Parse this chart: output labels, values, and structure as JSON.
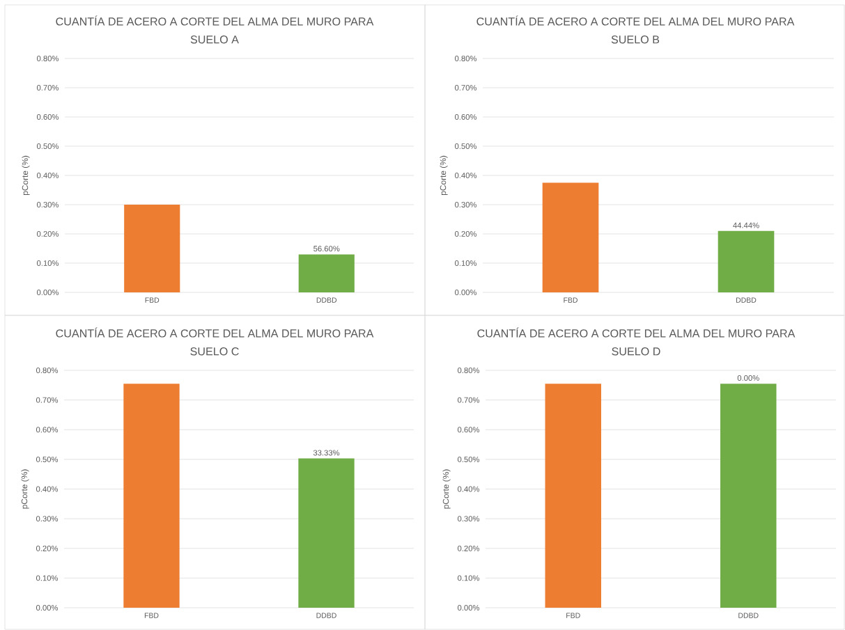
{
  "chart_data": [
    {
      "type": "bar",
      "title": "CUANTÍA DE ACERO A CORTE DEL ALMA DEL MURO PARA SUELO A",
      "ylabel": "pCorte (%)",
      "categories": [
        "FBD",
        "DDBD"
      ],
      "values": [
        0.3,
        0.13
      ],
      "colors": [
        "#ed7d31",
        "#70ad47"
      ],
      "annotations": [
        {
          "text": "56.60%",
          "x": "DDBD",
          "y": 0.13
        }
      ],
      "ylim": [
        0,
        0.8
      ],
      "yticks": [
        {
          "value": 0,
          "label": "0.00%"
        },
        {
          "value": 0.1,
          "label": "0.10%"
        },
        {
          "value": 0.2,
          "label": "0.20%"
        },
        {
          "value": 0.3,
          "label": "0.30%"
        },
        {
          "value": 0.4,
          "label": "0.40%"
        },
        {
          "value": 0.5,
          "label": "0.50%"
        },
        {
          "value": 0.6,
          "label": "0.60%"
        },
        {
          "value": 0.7,
          "label": "0.70%"
        },
        {
          "value": 0.8,
          "label": "0.80%"
        }
      ],
      "grid": "y"
    },
    {
      "type": "bar",
      "title": "CUANTÍA DE ACERO A CORTE DEL ALMA DEL MURO PARA SUELO B",
      "ylabel": "pCorte (%)",
      "categories": [
        "FBD",
        "DDBD"
      ],
      "values": [
        0.375,
        0.21
      ],
      "colors": [
        "#ed7d31",
        "#70ad47"
      ],
      "annotations": [
        {
          "text": "44.44%",
          "x": "DDBD",
          "y": 0.21
        }
      ],
      "ylim": [
        0,
        0.8
      ],
      "yticks": [
        {
          "value": 0,
          "label": "0.00%"
        },
        {
          "value": 0.1,
          "label": "0.10%"
        },
        {
          "value": 0.2,
          "label": "0.20%"
        },
        {
          "value": 0.3,
          "label": "0.30%"
        },
        {
          "value": 0.4,
          "label": "0.40%"
        },
        {
          "value": 0.5,
          "label": "0.50%"
        },
        {
          "value": 0.6,
          "label": "0.60%"
        },
        {
          "value": 0.7,
          "label": "0.70%"
        },
        {
          "value": 0.8,
          "label": "0.80%"
        }
      ],
      "grid": "y"
    },
    {
      "type": "bar",
      "title": "CUANTÍA DE ACERO A CORTE DEL ALMA DEL MURO PARA SUELO C",
      "ylabel": "pCorte (%)",
      "categories": [
        "FBD",
        "DDBD"
      ],
      "values": [
        0.755,
        0.503
      ],
      "colors": [
        "#ed7d31",
        "#70ad47"
      ],
      "annotations": [
        {
          "text": "33.33%",
          "x": "DDBD",
          "y": 0.503
        }
      ],
      "ylim": [
        0,
        0.8
      ],
      "yticks": [
        {
          "value": 0,
          "label": "0.00%"
        },
        {
          "value": 0.1,
          "label": "0.10%"
        },
        {
          "value": 0.2,
          "label": "0.20%"
        },
        {
          "value": 0.3,
          "label": "0.30%"
        },
        {
          "value": 0.4,
          "label": "0.40%"
        },
        {
          "value": 0.5,
          "label": "0.50%"
        },
        {
          "value": 0.6,
          "label": "0.60%"
        },
        {
          "value": 0.7,
          "label": "0.70%"
        },
        {
          "value": 0.8,
          "label": "0.80%"
        }
      ],
      "grid": "y"
    },
    {
      "type": "bar",
      "title": "CUANTÍA DE ACERO A CORTE DEL ALMA DEL MURO PARA SUELO D",
      "ylabel": "pCorte (%)",
      "categories": [
        "FBD",
        "DDBD"
      ],
      "values": [
        0.755,
        0.755
      ],
      "colors": [
        "#ed7d31",
        "#70ad47"
      ],
      "annotations": [
        {
          "text": "0.00%",
          "x": "DDBD",
          "y": 0.755
        }
      ],
      "ylim": [
        0,
        0.8
      ],
      "yticks": [
        {
          "value": 0,
          "label": "0.00%"
        },
        {
          "value": 0.1,
          "label": "0.10%"
        },
        {
          "value": 0.2,
          "label": "0.20%"
        },
        {
          "value": 0.3,
          "label": "0.30%"
        },
        {
          "value": 0.4,
          "label": "0.40%"
        },
        {
          "value": 0.5,
          "label": "0.50%"
        },
        {
          "value": 0.6,
          "label": "0.60%"
        },
        {
          "value": 0.7,
          "label": "0.70%"
        },
        {
          "value": 0.8,
          "label": "0.80%"
        }
      ],
      "grid": "y"
    }
  ]
}
